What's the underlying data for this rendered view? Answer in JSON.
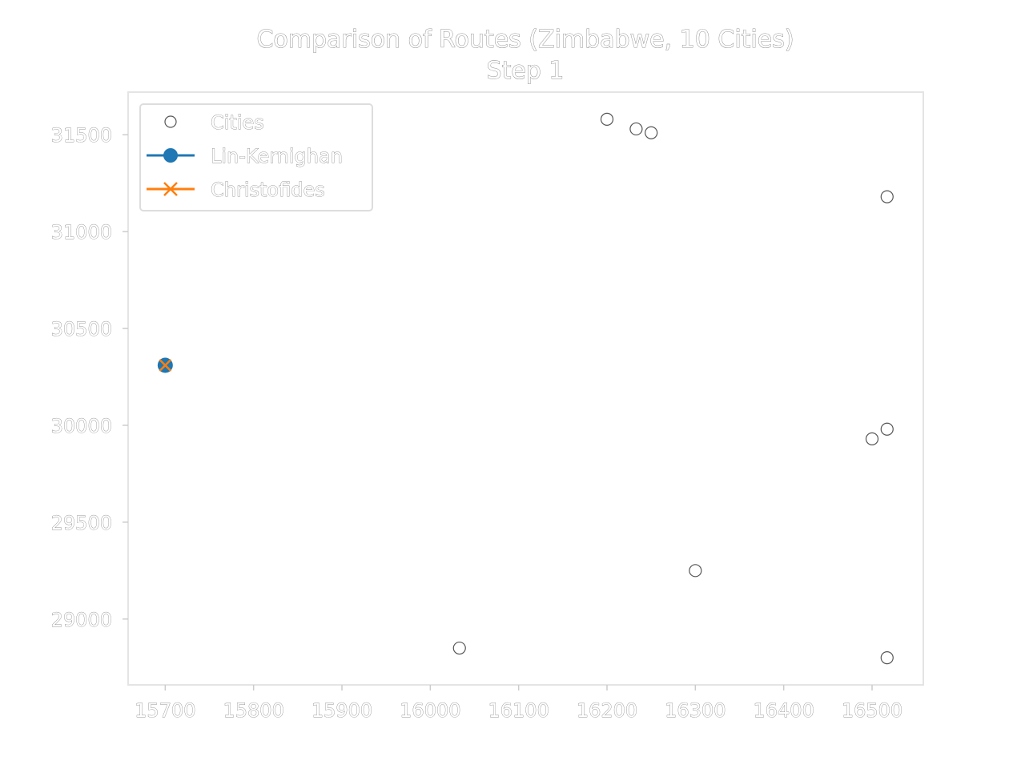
{
  "chart_data": {
    "type": "scatter",
    "title": "Comparison of Routes (Zimbabwe, 10 Cities)",
    "subtitle": "Step 1",
    "xlabel": "",
    "ylabel": "",
    "xlim": [
      15658,
      16558
    ],
    "ylim": [
      28660,
      31720
    ],
    "x_ticks": [
      15700,
      15800,
      15900,
      16000,
      16100,
      16200,
      16300,
      16400,
      16500
    ],
    "y_ticks": [
      29000,
      29500,
      30000,
      30500,
      31000,
      31500
    ],
    "grid": false,
    "legend_position": "top-left",
    "series": [
      {
        "name": "Cities",
        "marker": "open-circle",
        "color": "#555555",
        "points": [
          {
            "x": 15700,
            "y": 30310
          },
          {
            "x": 16033,
            "y": 28850
          },
          {
            "x": 16200,
            "y": 31580
          },
          {
            "x": 16233,
            "y": 31530
          },
          {
            "x": 16250,
            "y": 31510
          },
          {
            "x": 16517,
            "y": 31180
          },
          {
            "x": 16500,
            "y": 29930
          },
          {
            "x": 16517,
            "y": 29980
          },
          {
            "x": 16300,
            "y": 29250
          },
          {
            "x": 16517,
            "y": 28800
          }
        ]
      },
      {
        "name": "Lin-Kernighan",
        "marker": "filled-circle",
        "color": "#1f77b4",
        "points": [
          {
            "x": 15700,
            "y": 30310
          }
        ]
      },
      {
        "name": "Christofides",
        "marker": "x",
        "color": "#ff7f0e",
        "points": [
          {
            "x": 15700,
            "y": 30310
          }
        ]
      }
    ]
  }
}
